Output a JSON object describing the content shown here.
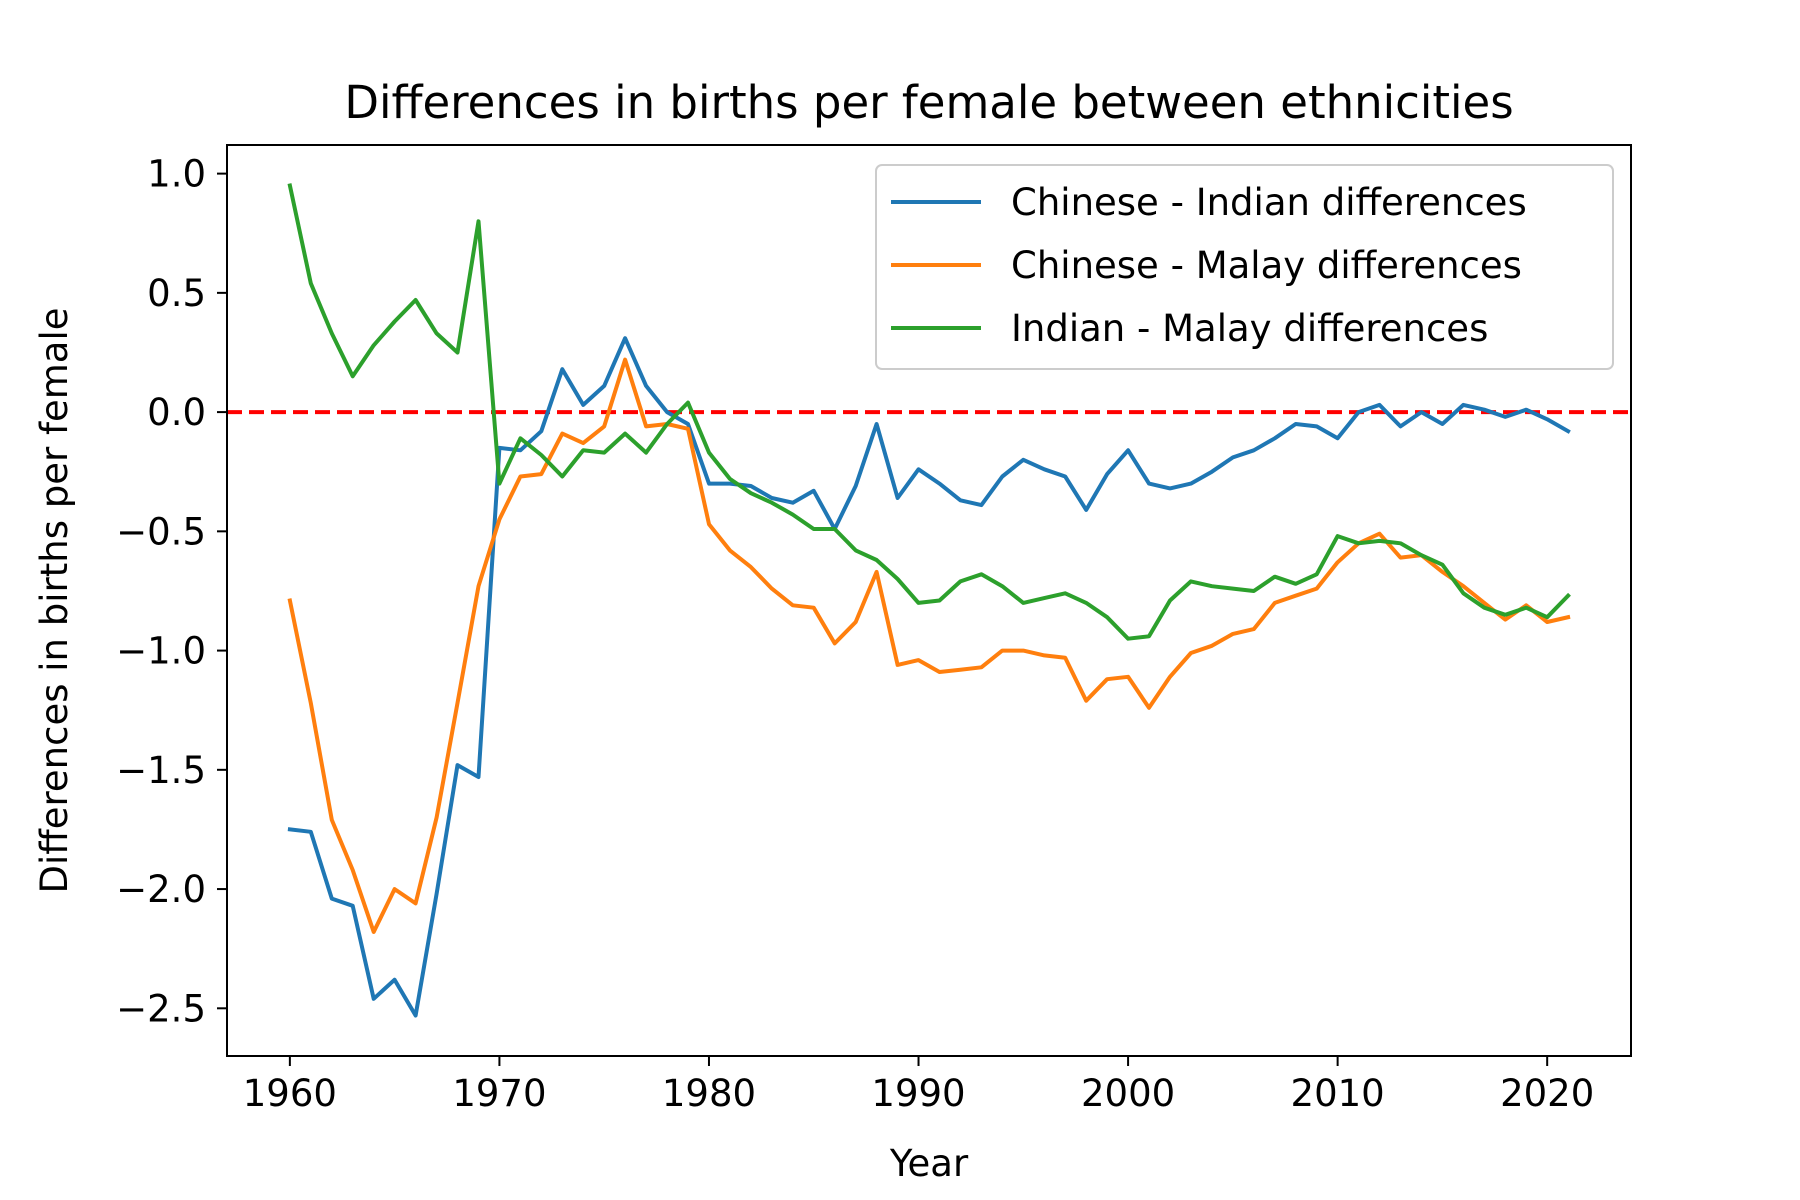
{
  "chart_data": {
    "type": "line",
    "title": "Differences in births per female between ethnicities",
    "xlabel": "Year",
    "ylabel": "Differences in births per female",
    "xlim": [
      1957,
      2024
    ],
    "ylim": [
      -2.7,
      1.12
    ],
    "xticks": [
      1960,
      1970,
      1980,
      1990,
      2000,
      2010,
      2020
    ],
    "xtick_labels": [
      "1960",
      "1970",
      "1980",
      "1990",
      "2000",
      "2010",
      "2020"
    ],
    "yticks": [
      1.0,
      0.5,
      0.0,
      -0.5,
      -1.0,
      -1.5,
      -2.0,
      -2.5
    ],
    "ytick_labels": [
      "1.0",
      "0.5",
      "0.0",
      "−0.5",
      "−1.0",
      "−1.5",
      "−2.0",
      "−2.5"
    ],
    "grid": false,
    "legend_position": "top-right",
    "reference_line": {
      "y": 0.0,
      "color": "#ff0000",
      "style": "dashed"
    },
    "x": [
      1960,
      1961,
      1962,
      1963,
      1964,
      1965,
      1966,
      1967,
      1968,
      1969,
      1970,
      1971,
      1972,
      1973,
      1974,
      1975,
      1976,
      1977,
      1978,
      1979,
      1980,
      1981,
      1982,
      1983,
      1984,
      1985,
      1986,
      1987,
      1988,
      1989,
      1990,
      1991,
      1992,
      1993,
      1994,
      1995,
      1996,
      1997,
      1998,
      1999,
      2000,
      2001,
      2002,
      2003,
      2004,
      2005,
      2006,
      2007,
      2008,
      2009,
      2010,
      2011,
      2012,
      2013,
      2014,
      2015,
      2016,
      2017,
      2018,
      2019,
      2020,
      2021
    ],
    "series": [
      {
        "name": "Chinese - Indian differences",
        "color": "#1f77b4",
        "values": [
          -1.75,
          -1.76,
          -2.04,
          -2.07,
          -2.46,
          -2.38,
          -2.53,
          -2.02,
          -1.48,
          -1.53,
          -0.15,
          -0.16,
          -0.08,
          0.18,
          0.03,
          0.11,
          0.31,
          0.11,
          0.0,
          -0.05,
          -0.3,
          -0.3,
          -0.31,
          -0.36,
          -0.38,
          -0.33,
          -0.49,
          -0.31,
          -0.05,
          -0.36,
          -0.24,
          -0.3,
          -0.37,
          -0.39,
          -0.27,
          -0.2,
          -0.24,
          -0.27,
          -0.41,
          -0.26,
          -0.16,
          -0.3,
          -0.32,
          -0.3,
          -0.25,
          -0.19,
          -0.16,
          -0.11,
          -0.05,
          -0.06,
          -0.11,
          0.0,
          0.03,
          -0.06,
          0.0,
          -0.05,
          0.03,
          0.01,
          -0.02,
          0.01,
          -0.03,
          -0.08
        ]
      },
      {
        "name": "Chinese - Malay differences",
        "color": "#ff7f0e",
        "values": [
          -0.79,
          -1.22,
          -1.71,
          -1.92,
          -2.18,
          -2.0,
          -2.06,
          -1.7,
          -1.22,
          -0.73,
          -0.45,
          -0.27,
          -0.26,
          -0.09,
          -0.13,
          -0.06,
          0.22,
          -0.06,
          -0.05,
          -0.07,
          -0.47,
          -0.58,
          -0.65,
          -0.74,
          -0.81,
          -0.82,
          -0.97,
          -0.88,
          -0.67,
          -1.06,
          -1.04,
          -1.09,
          -1.08,
          -1.07,
          -1.0,
          -1.0,
          -1.02,
          -1.03,
          -1.21,
          -1.12,
          -1.11,
          -1.24,
          -1.11,
          -1.01,
          -0.98,
          -0.93,
          -0.91,
          -0.8,
          -0.77,
          -0.74,
          -0.63,
          -0.55,
          -0.51,
          -0.61,
          -0.6,
          -0.67,
          -0.73,
          -0.8,
          -0.87,
          -0.81,
          -0.88,
          -0.86
        ]
      },
      {
        "name": "Indian - Malay differences",
        "color": "#2ca02c",
        "values": [
          0.95,
          0.54,
          0.33,
          0.15,
          0.28,
          0.38,
          0.47,
          0.33,
          0.25,
          0.8,
          -0.3,
          -0.11,
          -0.18,
          -0.27,
          -0.16,
          -0.17,
          -0.09,
          -0.17,
          -0.05,
          0.04,
          -0.17,
          -0.28,
          -0.34,
          -0.38,
          -0.43,
          -0.49,
          -0.49,
          -0.58,
          -0.62,
          -0.7,
          -0.8,
          -0.79,
          -0.71,
          -0.68,
          -0.73,
          -0.8,
          -0.78,
          -0.76,
          -0.8,
          -0.86,
          -0.95,
          -0.94,
          -0.79,
          -0.71,
          -0.73,
          -0.74,
          -0.75,
          -0.69,
          -0.72,
          -0.68,
          -0.52,
          -0.55,
          -0.54,
          -0.55,
          -0.6,
          -0.64,
          -0.76,
          -0.82,
          -0.85,
          -0.82,
          -0.86,
          -0.77
        ]
      }
    ]
  }
}
